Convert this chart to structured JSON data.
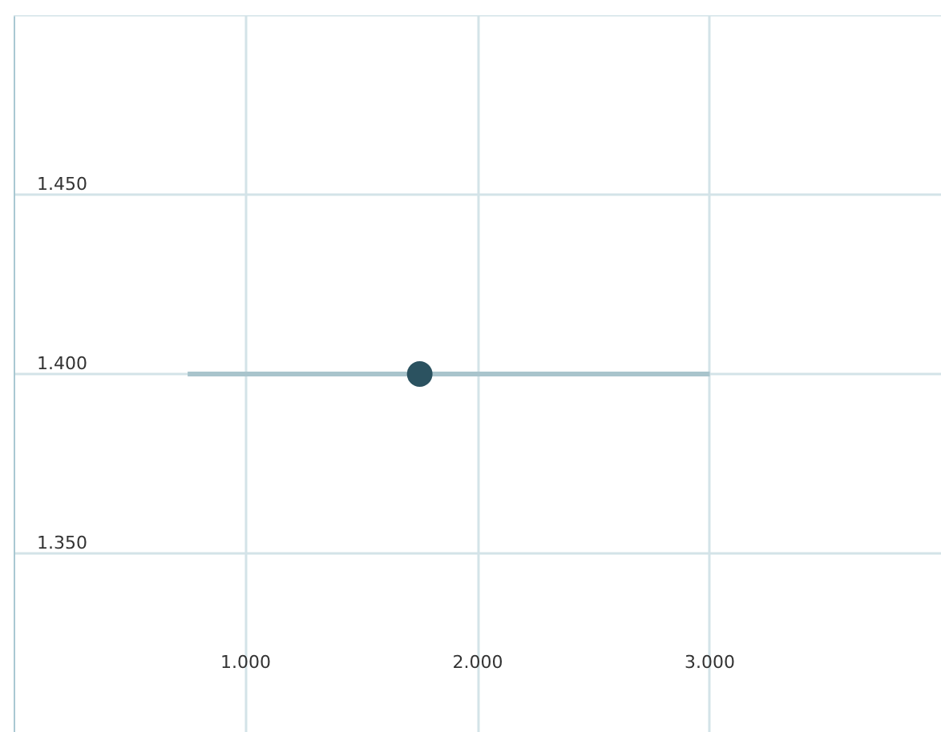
{
  "chart_data": {
    "type": "scatter",
    "x": [
      1.75
    ],
    "values": [
      1.4
    ],
    "xerrors": [
      [
        0.75,
        3.0
      ]
    ],
    "color": "#2b5260",
    "xlim": [
      0,
      4
    ],
    "ylim": [
      1.3,
      1.5
    ],
    "xticks": [
      {
        "value": 1,
        "label": "1.000"
      },
      {
        "value": 2,
        "label": "2.000"
      },
      {
        "value": 3,
        "label": "3.000"
      }
    ],
    "yticks": [
      {
        "value": 1.35,
        "label": "1.350"
      },
      {
        "value": 1.4,
        "label": "1.400"
      },
      {
        "value": 1.45,
        "label": "1.450"
      }
    ],
    "grid": true,
    "marker": "circle"
  }
}
